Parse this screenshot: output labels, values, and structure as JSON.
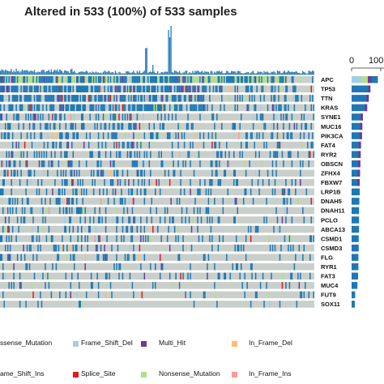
{
  "title": "Altered in 533 (100%) of 533 samples",
  "colors": {
    "background": "#c9cfcb",
    "Missense_Mutation": "#1f78b4",
    "Frame_Shift_Del": "#a6cee3",
    "Multi_Hit": "#6a3d9a",
    "In_Frame_Del": "#fdbf6f",
    "Frame_Shift_Ins": "#1f5fa8",
    "Splice_Site": "#e31a1c",
    "Nonsense_Mutation": "#b2df8a",
    "In_Frame_Ins": "#fb9a99",
    "top_bar": "#2c7fb8"
  },
  "chart_data": {
    "type": "heatmap",
    "title": "Altered in 533 (100%) of 533 samples",
    "genes": [
      "APC",
      "TP53",
      "TTN",
      "KRAS",
      "SYNE1",
      "MUC16",
      "PIK3CA",
      "FAT4",
      "RYR2",
      "OBSCN",
      "ZFHX4",
      "FBXW7",
      "LRP1B",
      "DNAH5",
      "DNAH11",
      "PCLO",
      "ABCA13",
      "CSMD1",
      "CSMD3",
      "FLG",
      "RYR1",
      "FAT3",
      "MUC4",
      "FUT9",
      "SOX11"
    ],
    "gene_freq_pct": [
      76,
      53,
      48,
      43,
      30,
      28,
      27,
      24,
      23,
      22,
      21,
      20,
      20,
      19,
      18,
      18,
      18,
      17,
      17,
      16,
      16,
      15,
      13,
      6,
      5
    ],
    "right_axis_ticks": [
      "0",
      "100"
    ],
    "legend": [
      {
        "label": "Missense_Mutation",
        "display": "ssense_Mutation",
        "color_key": "Missense_Mutation"
      },
      {
        "label": "Frame_Shift_Del",
        "display": "Frame_Shift_Del",
        "color_key": "Frame_Shift_Del"
      },
      {
        "label": "Multi_Hit",
        "display": "Multi_Hit",
        "color_key": "Multi_Hit"
      },
      {
        "label": "In_Frame_Del",
        "display": "In_Frame_Del",
        "color_key": "In_Frame_Del"
      },
      {
        "label": "Frame_Shift_Ins",
        "display": "ame_Shift_Ins",
        "color_key": "Frame_Shift_Ins"
      },
      {
        "label": "Splice_Site",
        "display": "Splice_Site",
        "color_key": "Splice_Site"
      },
      {
        "label": "Nonsense_Mutation",
        "display": "Nonsense_Mutation",
        "color_key": "Nonsense_Mutation"
      },
      {
        "label": "In_Frame_Ins",
        "display": "In_Frame_Ins",
        "color_key": "In_Frame_Ins"
      }
    ]
  }
}
